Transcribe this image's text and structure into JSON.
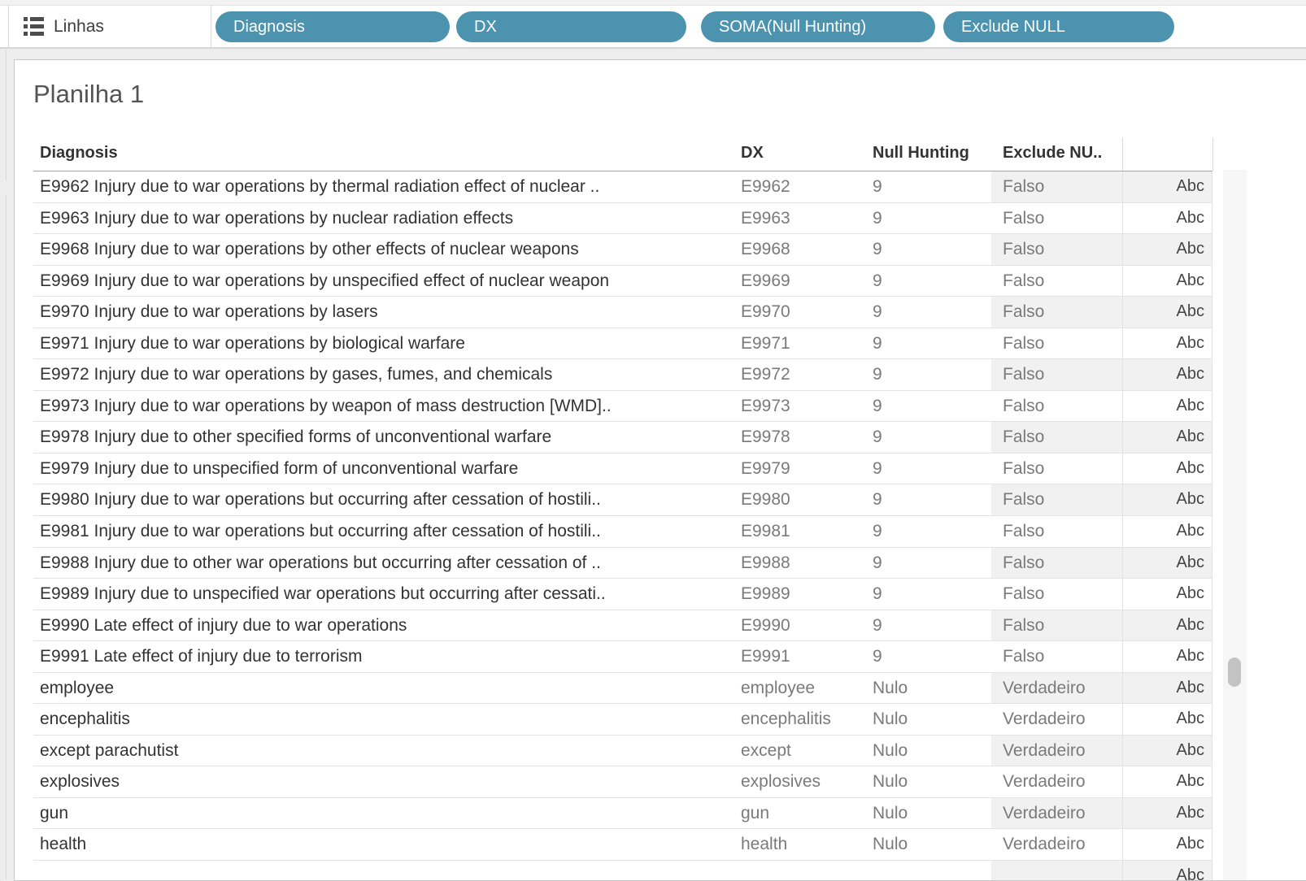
{
  "shelf": {
    "label": "Linhas",
    "pills": [
      "Diagnosis",
      "DX",
      "SOMA(Null Hunting)",
      "Exclude NULL"
    ]
  },
  "sheet": {
    "title": "Planilha 1"
  },
  "table": {
    "columns": [
      "Diagnosis",
      "DX",
      "Null Hunting",
      "Exclude NU.."
    ],
    "abc_label": "Abc",
    "rows": [
      {
        "diagnosis": "E9962 Injury due to war operations by thermal radiation effect of nuclear ..",
        "dx": "E9962",
        "null_hunting": "9",
        "exclude": "Falso"
      },
      {
        "diagnosis": "E9963 Injury due to war operations by nuclear radiation effects",
        "dx": "E9963",
        "null_hunting": "9",
        "exclude": "Falso"
      },
      {
        "diagnosis": "E9968 Injury due to war operations by other effects of nuclear weapons",
        "dx": "E9968",
        "null_hunting": "9",
        "exclude": "Falso"
      },
      {
        "diagnosis": "E9969 Injury due to war operations by unspecified effect of nuclear weapon",
        "dx": "E9969",
        "null_hunting": "9",
        "exclude": "Falso"
      },
      {
        "diagnosis": "E9970 Injury due to war operations by lasers",
        "dx": "E9970",
        "null_hunting": "9",
        "exclude": "Falso"
      },
      {
        "diagnosis": "E9971 Injury due to war operations by biological warfare",
        "dx": "E9971",
        "null_hunting": "9",
        "exclude": "Falso"
      },
      {
        "diagnosis": "E9972 Injury due to war operations by gases, fumes, and chemicals",
        "dx": "E9972",
        "null_hunting": "9",
        "exclude": "Falso"
      },
      {
        "diagnosis": "E9973 Injury due to war operations by weapon of mass destruction [WMD]..",
        "dx": "E9973",
        "null_hunting": "9",
        "exclude": "Falso"
      },
      {
        "diagnosis": "E9978 Injury due to other specified forms of unconventional warfare",
        "dx": "E9978",
        "null_hunting": "9",
        "exclude": "Falso"
      },
      {
        "diagnosis": "E9979 Injury due to unspecified form of unconventional warfare",
        "dx": "E9979",
        "null_hunting": "9",
        "exclude": "Falso"
      },
      {
        "diagnosis": "E9980 Injury due to war operations but occurring after cessation of hostili..",
        "dx": "E9980",
        "null_hunting": "9",
        "exclude": "Falso"
      },
      {
        "diagnosis": "E9981 Injury due to war operations but occurring after cessation of hostili..",
        "dx": "E9981",
        "null_hunting": "9",
        "exclude": "Falso"
      },
      {
        "diagnosis": "E9988 Injury due to other war operations but occurring after cessation of ..",
        "dx": "E9988",
        "null_hunting": "9",
        "exclude": "Falso"
      },
      {
        "diagnosis": "E9989 Injury due to unspecified war operations but occurring after cessati..",
        "dx": "E9989",
        "null_hunting": "9",
        "exclude": "Falso"
      },
      {
        "diagnosis": "E9990 Late effect of injury due to war operations",
        "dx": "E9990",
        "null_hunting": "9",
        "exclude": "Falso"
      },
      {
        "diagnosis": "E9991 Late effect of injury due to terrorism",
        "dx": "E9991",
        "null_hunting": "9",
        "exclude": "Falso"
      },
      {
        "diagnosis": "employee",
        "dx": "employee",
        "null_hunting": "Nulo",
        "exclude": "Verdadeiro"
      },
      {
        "diagnosis": "encephalitis",
        "dx": "encephalitis",
        "null_hunting": "Nulo",
        "exclude": "Verdadeiro"
      },
      {
        "diagnosis": "except parachutist",
        "dx": "except",
        "null_hunting": "Nulo",
        "exclude": "Verdadeiro"
      },
      {
        "diagnosis": "explosives",
        "dx": "explosives",
        "null_hunting": "Nulo",
        "exclude": "Verdadeiro"
      },
      {
        "diagnosis": "gun",
        "dx": "gun",
        "null_hunting": "Nulo",
        "exclude": "Verdadeiro"
      },
      {
        "diagnosis": "health",
        "dx": "health",
        "null_hunting": "Nulo",
        "exclude": "Verdadeiro"
      },
      {
        "diagnosis": "",
        "dx": "",
        "null_hunting": "",
        "exclude": "",
        "partial": true
      }
    ]
  },
  "colors": {
    "pill": "#4b93af",
    "row_band": "#f1f1f1",
    "header_text": "#333333",
    "dim_text": "#7a7a7a"
  }
}
